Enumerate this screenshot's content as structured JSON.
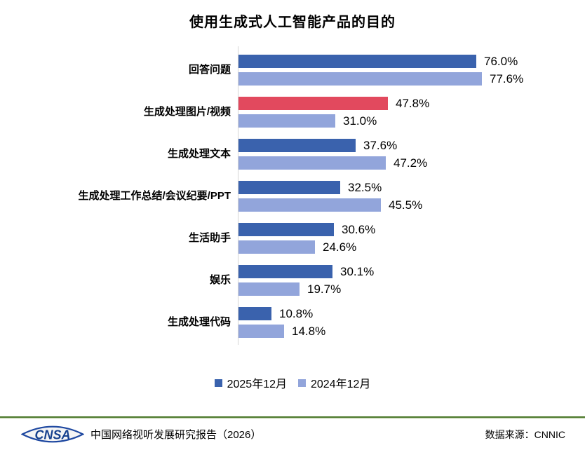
{
  "title": "使用生成式人工智能产品的目的",
  "chart_data": {
    "type": "bar",
    "orientation": "horizontal",
    "title": "使用生成式人工智能产品的目的",
    "value_suffix": "%",
    "xlim": [
      0,
      80
    ],
    "grid": false,
    "legend_position": "bottom",
    "categories": [
      "回答问题",
      "生成处理图片/视频",
      "生成处理文本",
      "生成处理工作总结/会议纪要/PPT",
      "生活助手",
      "娱乐",
      "生成处理代码"
    ],
    "series": [
      {
        "name": "2025年12月",
        "color": "#3A62AD",
        "values": [
          76.0,
          47.8,
          37.6,
          32.5,
          30.6,
          30.1,
          10.8
        ]
      },
      {
        "name": "2024年12月",
        "color": "#92A5DB",
        "values": [
          77.6,
          31.0,
          47.2,
          45.5,
          24.6,
          19.7,
          14.8
        ]
      }
    ],
    "highlight": {
      "series": 0,
      "category_index": 1,
      "color": "#E2495E"
    }
  },
  "legend": [
    {
      "label": "2025年12月",
      "color": "#3A62AD"
    },
    {
      "label": "2024年12月",
      "color": "#92A5DB"
    }
  ],
  "footer": {
    "logo_text": "CNSA",
    "report_title": "中国网络视听发展研究报告（2026）",
    "source": "数据来源：CNNIC",
    "divider_color": "#4E7A2E"
  }
}
